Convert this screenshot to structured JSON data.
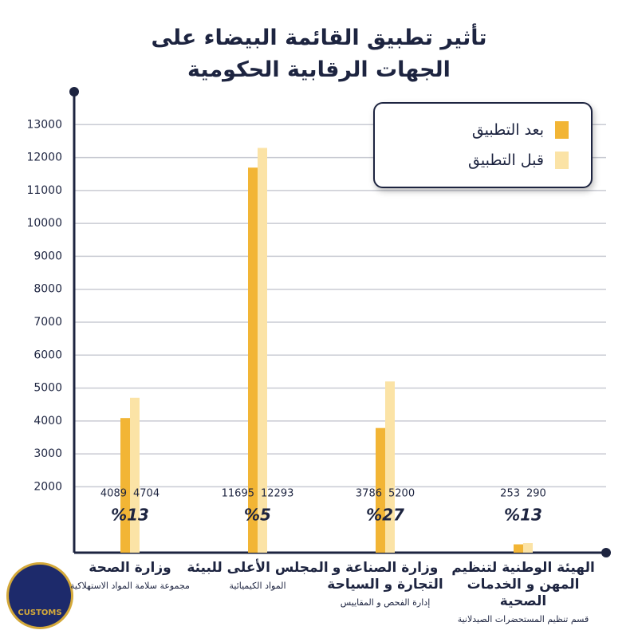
{
  "chart_data": {
    "type": "bar",
    "title_lines": [
      "تأثير تطبيق القائمة البيضاء على",
      "الجهات الرقابية الحكومية"
    ],
    "categories": [
      "وزارة الصحة",
      "المجلس الأعلى للبيئة",
      "وزارة الصناعة و التجارة و السياحة",
      "الهيئة الوطنية لتنظيم المهن و الخدمات الصحية"
    ],
    "category_notes": [
      "مجموعة سلامة المواد الاستهلاكية",
      "المواد الكيميائية",
      "إدارة الفحص و المقاييس",
      "قسم تنظيم المستحضرات الصيدلانية"
    ],
    "series": [
      {
        "name": "بعد التطبيق",
        "color": "#f2b535",
        "values": [
          4089,
          11695,
          3786,
          253
        ]
      },
      {
        "name": "قبل التطبيق",
        "color": "#fbe3a6",
        "values": [
          4704,
          12293,
          5200,
          290
        ]
      }
    ],
    "percent_labels": [
      "%13",
      "%5",
      "%27",
      "%13"
    ],
    "ylim": [
      0,
      14000
    ],
    "yticks": [
      2000,
      3000,
      4000,
      5000,
      6000,
      7000,
      8000,
      9000,
      10000,
      11000,
      12000,
      13000
    ],
    "grid": true,
    "logo_text": "CUSTOMS"
  }
}
